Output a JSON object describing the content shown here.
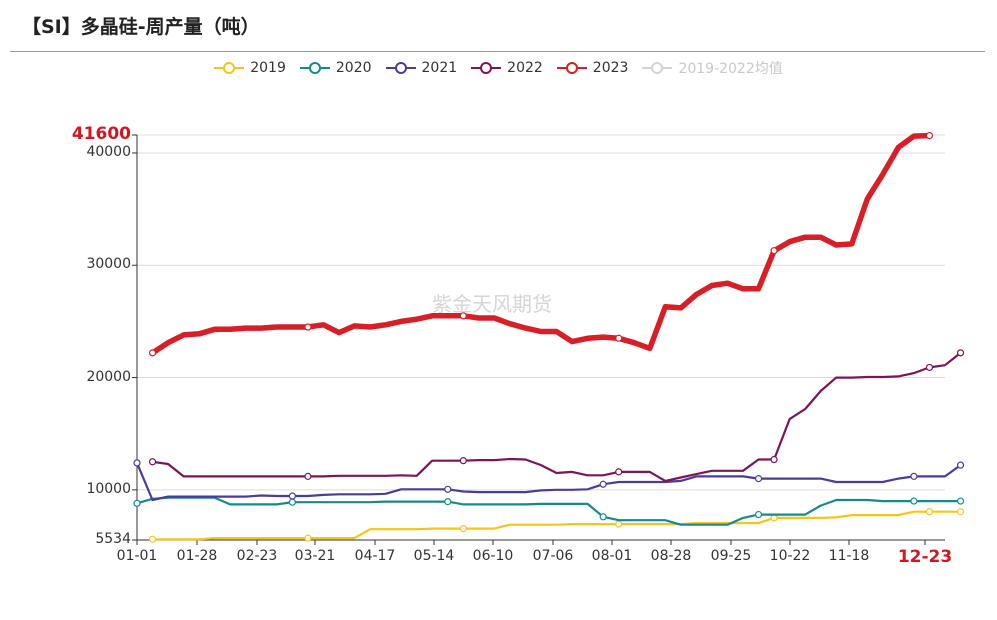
{
  "page": {
    "title": "【SI】多晶硅-周产量（吨）",
    "watermark": "紫金天风期货"
  },
  "chart_data": {
    "type": "line",
    "title": "【SI】多晶硅-周产量（吨）",
    "xlabel": "",
    "ylabel": "",
    "ylim": [
      5534,
      41600
    ],
    "y_ticks": [
      5534,
      10000,
      20000,
      30000,
      40000,
      41600
    ],
    "y_tick_labels": [
      "5534",
      "10000",
      "20000",
      "30000",
      "40000",
      "41600"
    ],
    "x_tick_labels": [
      "01-01",
      "01-28",
      "02-23",
      "03-21",
      "04-17",
      "05-14",
      "06-10",
      "07-06",
      "08-01",
      "08-28",
      "09-25",
      "10-22",
      "11-18",
      "12-23"
    ],
    "highlight_x_label": "12-23",
    "highlight_y_label": "41600",
    "grid": true,
    "legend_position": "top-center",
    "x_count": 53,
    "series": [
      {
        "name": "2019",
        "color": "#f5c518",
        "points": [
          [
            1,
            5600
          ],
          [
            2,
            5600
          ],
          [
            3,
            5600
          ],
          [
            4,
            5600
          ],
          [
            5,
            5700
          ],
          [
            6,
            5700
          ],
          [
            7,
            5700
          ],
          [
            8,
            5700
          ],
          [
            9,
            5700
          ],
          [
            10,
            5700
          ],
          [
            11,
            5700
          ],
          [
            12,
            5700
          ],
          [
            13,
            5700
          ],
          [
            14,
            5700
          ],
          [
            15,
            6500
          ],
          [
            16,
            6500
          ],
          [
            17,
            6500
          ],
          [
            18,
            6500
          ],
          [
            19,
            6550
          ],
          [
            20,
            6550
          ],
          [
            21,
            6550
          ],
          [
            22,
            6550
          ],
          [
            23,
            6550
          ],
          [
            24,
            6900
          ],
          [
            25,
            6900
          ],
          [
            26,
            6900
          ],
          [
            27,
            6900
          ],
          [
            28,
            6950
          ],
          [
            29,
            6950
          ],
          [
            30,
            6950
          ],
          [
            31,
            6950
          ],
          [
            32,
            6950
          ],
          [
            33,
            6950
          ],
          [
            34,
            6950
          ],
          [
            35,
            6950
          ],
          [
            36,
            7050
          ],
          [
            37,
            7050
          ],
          [
            38,
            7050
          ],
          [
            39,
            7050
          ],
          [
            40,
            7050
          ],
          [
            41,
            7500
          ],
          [
            42,
            7500
          ],
          [
            43,
            7500
          ],
          [
            44,
            7500
          ],
          [
            45,
            7550
          ],
          [
            46,
            7750
          ],
          [
            47,
            7750
          ],
          [
            48,
            7750
          ],
          [
            49,
            7750
          ],
          [
            50,
            8050
          ],
          [
            51,
            8050
          ],
          [
            52,
            8050
          ],
          [
            53,
            8050
          ]
        ]
      },
      {
        "name": "2020",
        "color": "#158a8a",
        "points": [
          [
            0,
            8800
          ],
          [
            1,
            9200
          ],
          [
            2,
            9300
          ],
          [
            3,
            9300
          ],
          [
            4,
            9300
          ],
          [
            5,
            9300
          ],
          [
            6,
            8700
          ],
          [
            7,
            8700
          ],
          [
            8,
            8700
          ],
          [
            9,
            8700
          ],
          [
            10,
            8900
          ],
          [
            11,
            8900
          ],
          [
            12,
            8900
          ],
          [
            13,
            8900
          ],
          [
            14,
            8900
          ],
          [
            15,
            8900
          ],
          [
            16,
            8950
          ],
          [
            17,
            8950
          ],
          [
            18,
            8950
          ],
          [
            19,
            8950
          ],
          [
            20,
            8950
          ],
          [
            21,
            8700
          ],
          [
            22,
            8700
          ],
          [
            23,
            8700
          ],
          [
            24,
            8700
          ],
          [
            25,
            8700
          ],
          [
            26,
            8750
          ],
          [
            27,
            8750
          ],
          [
            28,
            8750
          ],
          [
            29,
            8750
          ],
          [
            30,
            7600
          ],
          [
            31,
            7300
          ],
          [
            32,
            7300
          ],
          [
            33,
            7300
          ],
          [
            34,
            7300
          ],
          [
            35,
            6900
          ],
          [
            36,
            6900
          ],
          [
            37,
            6900
          ],
          [
            38,
            6900
          ],
          [
            39,
            7500
          ],
          [
            40,
            7800
          ],
          [
            41,
            7800
          ],
          [
            42,
            7800
          ],
          [
            43,
            7800
          ],
          [
            44,
            8600
          ],
          [
            45,
            9100
          ],
          [
            46,
            9100
          ],
          [
            47,
            9100
          ],
          [
            48,
            9000
          ],
          [
            49,
            9000
          ],
          [
            50,
            9000
          ],
          [
            51,
            9000
          ],
          [
            52,
            9000
          ],
          [
            53,
            9000
          ]
        ]
      },
      {
        "name": "2021",
        "color": "#4b3b9e",
        "points": [
          [
            0,
            12400
          ],
          [
            1,
            9100
          ],
          [
            2,
            9400
          ],
          [
            3,
            9400
          ],
          [
            4,
            9400
          ],
          [
            5,
            9400
          ],
          [
            6,
            9400
          ],
          [
            7,
            9400
          ],
          [
            8,
            9500
          ],
          [
            9,
            9450
          ],
          [
            10,
            9450
          ],
          [
            11,
            9450
          ],
          [
            12,
            9550
          ],
          [
            13,
            9600
          ],
          [
            14,
            9600
          ],
          [
            15,
            9600
          ],
          [
            16,
            9650
          ],
          [
            17,
            10050
          ],
          [
            18,
            10050
          ],
          [
            19,
            10050
          ],
          [
            20,
            10050
          ],
          [
            21,
            9850
          ],
          [
            22,
            9800
          ],
          [
            23,
            9800
          ],
          [
            24,
            9800
          ],
          [
            25,
            9800
          ],
          [
            26,
            9950
          ],
          [
            27,
            10000
          ],
          [
            28,
            10000
          ],
          [
            29,
            10050
          ],
          [
            30,
            10500
          ],
          [
            31,
            10700
          ],
          [
            32,
            10700
          ],
          [
            33,
            10700
          ],
          [
            34,
            10700
          ],
          [
            35,
            10800
          ],
          [
            36,
            11200
          ],
          [
            37,
            11200
          ],
          [
            38,
            11200
          ],
          [
            39,
            11200
          ],
          [
            40,
            11000
          ],
          [
            41,
            11000
          ],
          [
            42,
            11000
          ],
          [
            43,
            11000
          ],
          [
            44,
            11000
          ],
          [
            45,
            10700
          ],
          [
            46,
            10700
          ],
          [
            47,
            10700
          ],
          [
            48,
            10700
          ],
          [
            49,
            11000
          ],
          [
            50,
            11200
          ],
          [
            51,
            11200
          ],
          [
            52,
            11200
          ],
          [
            53,
            12200
          ]
        ]
      },
      {
        "name": "2022",
        "color": "#7b1458",
        "points": [
          [
            1,
            12500
          ],
          [
            2,
            12300
          ],
          [
            3,
            11200
          ],
          [
            4,
            11200
          ],
          [
            5,
            11200
          ],
          [
            6,
            11200
          ],
          [
            7,
            11200
          ],
          [
            8,
            11200
          ],
          [
            9,
            11200
          ],
          [
            10,
            11200
          ],
          [
            11,
            11200
          ],
          [
            12,
            11200
          ],
          [
            13,
            11250
          ],
          [
            14,
            11250
          ],
          [
            15,
            11250
          ],
          [
            16,
            11250
          ],
          [
            17,
            11300
          ],
          [
            18,
            11250
          ],
          [
            19,
            12600
          ],
          [
            20,
            12600
          ],
          [
            21,
            12600
          ],
          [
            22,
            12650
          ],
          [
            23,
            12650
          ],
          [
            24,
            12750
          ],
          [
            25,
            12700
          ],
          [
            26,
            12200
          ],
          [
            27,
            11500
          ],
          [
            28,
            11600
          ],
          [
            29,
            11300
          ],
          [
            30,
            11300
          ],
          [
            31,
            11600
          ],
          [
            32,
            11600
          ],
          [
            33,
            11600
          ],
          [
            34,
            10800
          ],
          [
            35,
            11100
          ],
          [
            36,
            11400
          ],
          [
            37,
            11700
          ],
          [
            38,
            11700
          ],
          [
            39,
            11700
          ],
          [
            40,
            12700
          ],
          [
            41,
            12700
          ],
          [
            42,
            16300
          ],
          [
            43,
            17200
          ],
          [
            44,
            18800
          ],
          [
            45,
            20000
          ],
          [
            46,
            20000
          ],
          [
            47,
            20050
          ],
          [
            48,
            20050
          ],
          [
            49,
            20100
          ],
          [
            50,
            20400
          ],
          [
            51,
            20900
          ],
          [
            52,
            21100
          ],
          [
            53,
            22200
          ]
        ]
      },
      {
        "name": "2023",
        "color": "#d81e26",
        "points": [
          [
            1,
            22200
          ],
          [
            2,
            23100
          ],
          [
            3,
            23800
          ],
          [
            4,
            23900
          ],
          [
            5,
            24300
          ],
          [
            6,
            24300
          ],
          [
            7,
            24400
          ],
          [
            8,
            24400
          ],
          [
            9,
            24500
          ],
          [
            10,
            24500
          ],
          [
            11,
            24500
          ],
          [
            12,
            24700
          ],
          [
            13,
            24000
          ],
          [
            14,
            24600
          ],
          [
            15,
            24500
          ],
          [
            16,
            24700
          ],
          [
            17,
            25000
          ],
          [
            18,
            25200
          ],
          [
            19,
            25500
          ],
          [
            20,
            25500
          ],
          [
            21,
            25500
          ],
          [
            22,
            25300
          ],
          [
            23,
            25300
          ],
          [
            24,
            24800
          ],
          [
            25,
            24400
          ],
          [
            26,
            24100
          ],
          [
            27,
            24100
          ],
          [
            28,
            23200
          ],
          [
            29,
            23500
          ],
          [
            30,
            23600
          ],
          [
            31,
            23500
          ],
          [
            32,
            23100
          ],
          [
            33,
            22600
          ],
          [
            34,
            26300
          ],
          [
            35,
            26200
          ],
          [
            36,
            27400
          ],
          [
            37,
            28200
          ],
          [
            38,
            28400
          ],
          [
            39,
            27900
          ],
          [
            40,
            27900
          ],
          [
            41,
            31300
          ],
          [
            42,
            32100
          ],
          [
            43,
            32500
          ],
          [
            44,
            32500
          ],
          [
            45,
            31800
          ],
          [
            46,
            31900
          ],
          [
            47,
            35900
          ],
          [
            48,
            38100
          ],
          [
            49,
            40500
          ],
          [
            50,
            41500
          ],
          [
            51,
            41550
          ]
        ]
      },
      {
        "name": "2019-2022均值",
        "color": "#d4d4d4",
        "points": []
      }
    ]
  }
}
